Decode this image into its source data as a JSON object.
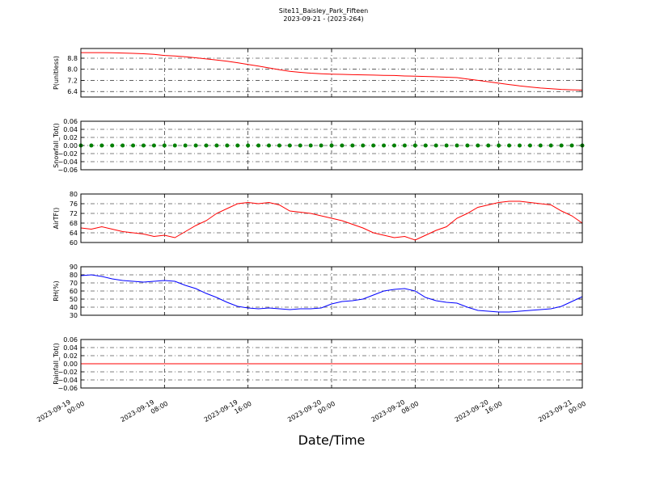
{
  "title": "Site11_Baisley_Park_Fifteen",
  "subtitle": "2023-09-21 - (2023-264)",
  "xlabel": "Date/Time",
  "x": [
    "2023-09-19 00:00",
    "2023-09-19 01:00",
    "2023-09-19 02:00",
    "2023-09-19 03:00",
    "2023-09-19 04:00",
    "2023-09-19 05:00",
    "2023-09-19 06:00",
    "2023-09-19 07:00",
    "2023-09-19 08:00",
    "2023-09-19 09:00",
    "2023-09-19 10:00",
    "2023-09-19 11:00",
    "2023-09-19 12:00",
    "2023-09-19 13:00",
    "2023-09-19 14:00",
    "2023-09-19 15:00",
    "2023-09-19 16:00",
    "2023-09-19 17:00",
    "2023-09-19 18:00",
    "2023-09-19 19:00",
    "2023-09-19 20:00",
    "2023-09-19 21:00",
    "2023-09-19 22:00",
    "2023-09-19 23:00",
    "2023-09-20 00:00",
    "2023-09-20 01:00",
    "2023-09-20 02:00",
    "2023-09-20 03:00",
    "2023-09-20 04:00",
    "2023-09-20 05:00",
    "2023-09-20 06:00",
    "2023-09-20 07:00",
    "2023-09-20 08:00",
    "2023-09-20 09:00",
    "2023-09-20 10:00",
    "2023-09-20 11:00",
    "2023-09-20 12:00",
    "2023-09-20 13:00",
    "2023-09-20 14:00",
    "2023-09-20 15:00",
    "2023-09-20 16:00",
    "2023-09-20 17:00",
    "2023-09-20 18:00",
    "2023-09-20 19:00",
    "2023-09-20 20:00",
    "2023-09-20 21:00",
    "2023-09-20 22:00",
    "2023-09-20 23:00",
    "2023-09-21 00:00"
  ],
  "xlim": [
    "2023-09-19 00:00",
    "2023-09-21 00:00"
  ],
  "xticks": [
    {
      "value": "2023-09-19 00:00",
      "label": [
        "2023-09-19",
        "00:00"
      ]
    },
    {
      "value": "2023-09-19 08:00",
      "label": [
        "2023-09-19",
        "08:00"
      ]
    },
    {
      "value": "2023-09-19 16:00",
      "label": [
        "2023-09-19",
        "16:00"
      ]
    },
    {
      "value": "2023-09-20 00:00",
      "label": [
        "2023-09-20",
        "00:00"
      ]
    },
    {
      "value": "2023-09-20 08:00",
      "label": [
        "2023-09-20",
        "08:00"
      ]
    },
    {
      "value": "2023-09-20 16:00",
      "label": [
        "2023-09-20",
        "16:00"
      ]
    },
    {
      "value": "2023-09-21 00:00",
      "label": [
        "2023-09-21",
        "00:00"
      ]
    }
  ],
  "chart_data": [
    {
      "type": "line",
      "ylabel": "P(unitless)",
      "ylim": [
        6.0,
        9.5
      ],
      "grid": true,
      "yticks": [
        6.4,
        7.2,
        {
          "value": 8,
          "label": "8.0"
        },
        8.8
      ],
      "color": "#ff0000",
      "values": [
        9.2,
        9.2,
        9.2,
        9.19,
        9.17,
        9.15,
        9.12,
        9.08,
        9.0,
        8.96,
        8.9,
        8.83,
        8.75,
        8.67,
        8.58,
        8.47,
        8.35,
        8.23,
        8.1,
        7.97,
        7.85,
        7.78,
        7.72,
        7.68,
        7.65,
        7.63,
        7.61,
        7.6,
        7.58,
        7.56,
        7.55,
        7.52,
        7.5,
        7.48,
        7.46,
        7.43,
        7.4,
        7.3,
        7.2,
        7.1,
        7.0,
        6.9,
        6.8,
        6.72,
        6.65,
        6.6,
        6.55,
        6.52,
        6.5
      ]
    },
    {
      "type": "scatter",
      "ylabel": "Snowfall_Tot()",
      "ylim": [
        -0.06,
        0.06
      ],
      "grid": true,
      "yticks": [
        {
          "value": -0.06,
          "label": "−0.06"
        },
        {
          "value": -0.04,
          "label": "−0.04"
        },
        {
          "value": -0.02,
          "label": "−0.02"
        },
        {
          "value": 0,
          "label": "0.00"
        },
        0.02,
        0.04,
        0.06
      ],
      "color": "#008000",
      "values": [
        0,
        0,
        0,
        0,
        0,
        0,
        0,
        0,
        0,
        0,
        0,
        0,
        0,
        0,
        0,
        0,
        0,
        0,
        0,
        0,
        0,
        0,
        0,
        0,
        0,
        0,
        0,
        0,
        0,
        0,
        0,
        0,
        0,
        0,
        0,
        0,
        0,
        0,
        0,
        0,
        0,
        0,
        0,
        0,
        0,
        0,
        0,
        0,
        0
      ]
    },
    {
      "type": "line",
      "ylabel": "AirTF()",
      "ylim": [
        60,
        80
      ],
      "grid": true,
      "yticks": [
        60,
        64,
        68,
        72,
        76,
        80
      ],
      "color": "#ff0000",
      "values": [
        66,
        65.5,
        66.5,
        65.5,
        64.5,
        64,
        63.5,
        62.5,
        63,
        62,
        64.5,
        67,
        69,
        72,
        74,
        76,
        76.5,
        76,
        76.5,
        75.5,
        73,
        72.5,
        72,
        71,
        70,
        69,
        67.5,
        66,
        64,
        63,
        62,
        62.5,
        61,
        63,
        65,
        66.5,
        70,
        72,
        74.5,
        75.5,
        76.5,
        77,
        77,
        76.5,
        76,
        75.5,
        73,
        71,
        68
      ]
    },
    {
      "type": "line",
      "ylabel": "RH(%)",
      "ylim": [
        30,
        90
      ],
      "grid": true,
      "yticks": [
        30,
        40,
        50,
        60,
        70,
        80,
        90
      ],
      "color": "#0000ff",
      "values": [
        79,
        80,
        78,
        75,
        73,
        72,
        71,
        72,
        73,
        72,
        67,
        63,
        57,
        52,
        46,
        41,
        39,
        38,
        39,
        38,
        37,
        38,
        38,
        39,
        44,
        47,
        48,
        50,
        55,
        60,
        62,
        63,
        60,
        52,
        48,
        46,
        45,
        40,
        36,
        35,
        34,
        34,
        35,
        36,
        37,
        38,
        41,
        47,
        53
      ]
    },
    {
      "type": "line",
      "ylabel": "Rainfall_Tot()",
      "ylim": [
        -0.06,
        0.06
      ],
      "grid": true,
      "yticks": [
        {
          "value": -0.06,
          "label": "−0.06"
        },
        {
          "value": -0.04,
          "label": "−0.04"
        },
        {
          "value": -0.02,
          "label": "−0.02"
        },
        {
          "value": 0,
          "label": "0.00"
        },
        0.02,
        0.04,
        0.06
      ],
      "color": "#ff0000",
      "values": [
        0,
        0,
        0,
        0,
        0,
        0,
        0,
        0,
        0,
        0,
        0,
        0,
        0,
        0,
        0,
        0,
        0,
        0,
        0,
        0,
        0,
        0,
        0,
        0,
        0,
        0,
        0,
        0,
        0,
        0,
        0,
        0,
        0,
        0,
        0,
        0,
        0,
        0,
        0,
        0,
        0,
        0,
        0,
        0,
        0,
        0,
        0,
        0,
        0
      ]
    }
  ]
}
